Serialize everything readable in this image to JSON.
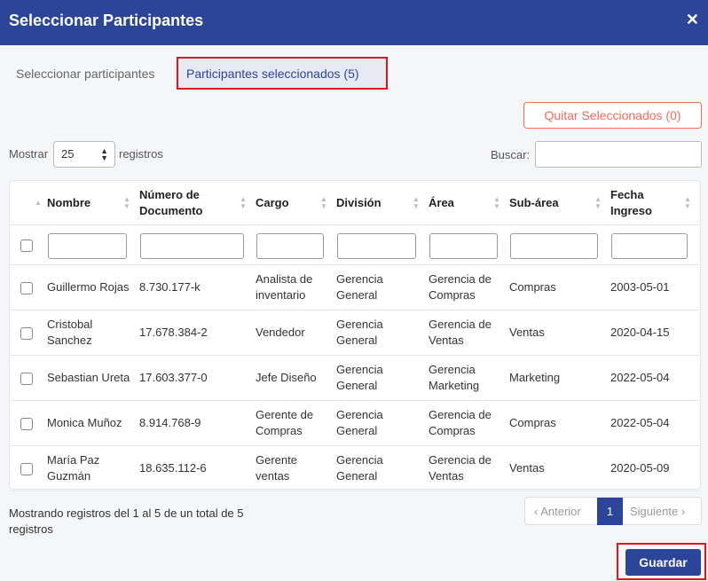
{
  "modal": {
    "title": "Seleccionar Participantes",
    "close": "✕"
  },
  "tabs": [
    {
      "label": "Seleccionar participantes"
    },
    {
      "label": "Participantes seleccionados (5)"
    }
  ],
  "remove_button": "Quitar Seleccionados (0)",
  "length": {
    "prefix": "Mostrar",
    "value": "25",
    "suffix": "registros"
  },
  "search": {
    "label": "Buscar:",
    "value": ""
  },
  "columns": [
    "Nombre",
    "Número de Documento",
    "Cargo",
    "División",
    "Área",
    "Sub-área",
    "Fecha Ingreso"
  ],
  "rows": [
    [
      "Guillermo Rojas",
      "8.730.177-k",
      "Analista de inventario",
      "Gerencia General",
      "Gerencia de Compras",
      "Compras",
      "2003-05-01"
    ],
    [
      "Cristobal Sanchez",
      "17.678.384-2",
      "Vendedor",
      "Gerencia General",
      "Gerencia de Ventas",
      "Ventas",
      "2020-04-15"
    ],
    [
      "Sebastian Ureta",
      "17.603.377-0",
      "Jefe Diseño",
      "Gerencia General",
      "Gerencia Marketing",
      "Marketing",
      "2022-05-04"
    ],
    [
      "Monica Muñoz",
      "8.914.768-9",
      "Gerente de Compras",
      "Gerencia General",
      "Gerencia de Compras",
      "Compras",
      "2022-05-04"
    ],
    [
      "María Paz Guzmán",
      "18.635.112-6",
      "Gerente ventas",
      "Gerencia General",
      "Gerencia de Ventas",
      "Ventas",
      "2020-05-09"
    ]
  ],
  "info": "Mostrando registros del 1 al 5 de un total de 5 registros",
  "pagination": {
    "prev": "‹ Anterior",
    "page": "1",
    "next": "Siguiente ›"
  },
  "save_button": "Guardar"
}
